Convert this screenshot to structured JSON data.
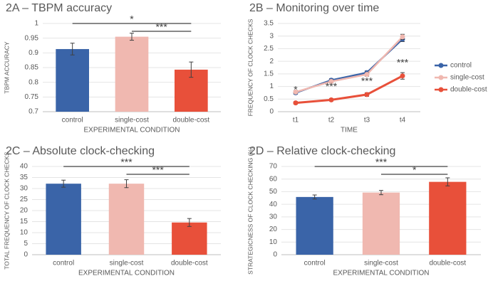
{
  "chart_data": [
    {
      "type": "bar",
      "title": "2A – TBPM accuracy",
      "y_label": "TBPM ACCURACY",
      "x_label": "EXPERIMENTAL CONDITION",
      "categories": [
        "control",
        "single-cost",
        "double-cost"
      ],
      "values": [
        0.913,
        0.955,
        0.843
      ],
      "errors": [
        0.02,
        0.012,
        0.026
      ],
      "colors": [
        "#3a64a8",
        "#f0b8b0",
        "#e8503a"
      ],
      "ylim": [
        0.7,
        1
      ],
      "yticks": [
        0.7,
        0.75,
        0.8,
        0.85,
        0.9,
        0.95,
        1
      ],
      "annotations": [
        {
          "text": "*",
          "pair": [
            "control",
            "double-cost"
          ]
        },
        {
          "text": "***",
          "pair": [
            "single-cost",
            "double-cost"
          ]
        }
      ]
    },
    {
      "type": "line",
      "title": "2B – Monitoring over time",
      "y_label": "FREQUENCY OF CLOCK CHECKS",
      "x_label": "TIME",
      "categories": [
        "t1",
        "t2",
        "t3",
        "t4"
      ],
      "ylim": [
        0,
        3.5
      ],
      "yticks": [
        0,
        0.5,
        1,
        1.5,
        2,
        2.5,
        3,
        3.5
      ],
      "legend": "right",
      "series": [
        {
          "name": "control",
          "color": "#3a64a8",
          "values": [
            0.75,
            1.25,
            1.55,
            2.88
          ],
          "errors": [
            0.06,
            0.06,
            0.07,
            0.1
          ]
        },
        {
          "name": "single-cost",
          "color": "#f0b8b0",
          "values": [
            0.78,
            1.2,
            1.48,
            2.97
          ],
          "errors": [
            0.06,
            0.06,
            0.07,
            0.1
          ]
        },
        {
          "name": "double-cost",
          "color": "#e8503a",
          "values": [
            0.35,
            0.47,
            0.68,
            1.42
          ],
          "errors": [
            0.05,
            0.05,
            0.07,
            0.13
          ]
        }
      ],
      "annotations": [
        {
          "text": "*",
          "at": "t1"
        },
        {
          "text": "***",
          "at": "t2"
        },
        {
          "text": "***",
          "at": "t3"
        },
        {
          "text": "***",
          "at": "t4"
        }
      ]
    },
    {
      "type": "bar",
      "title": "2C – Absolute clock-checking",
      "y_label": "TOTAL FREQUENCY OF CLOCK CHECKS",
      "x_label": "EXPERIMENTAL CONDITION",
      "categories": [
        "control",
        "single-cost",
        "double-cost"
      ],
      "values": [
        32.2,
        32.2,
        14.6
      ],
      "errors": [
        1.6,
        1.8,
        1.8
      ],
      "colors": [
        "#3a64a8",
        "#f0b8b0",
        "#e8503a"
      ],
      "ylim": [
        0,
        40
      ],
      "yticks": [
        0,
        5,
        10,
        15,
        20,
        25,
        30,
        35,
        40
      ],
      "annotations": [
        {
          "text": "***",
          "pair": [
            "control",
            "double-cost"
          ]
        },
        {
          "text": "***",
          "pair": [
            "single-cost",
            "double-cost"
          ]
        }
      ]
    },
    {
      "type": "bar",
      "title": "2D – Relative clock-checking",
      "y_label": "STRATEGICNESS OF CLOCK CHECKING (%)",
      "x_label": "EXPERIMENTAL CONDITION",
      "categories": [
        "control",
        "single-cost",
        "double-cost"
      ],
      "values": [
        45.8,
        49.3,
        57.8
      ],
      "errors": [
        1.6,
        1.7,
        3.2
      ],
      "colors": [
        "#3a64a8",
        "#f0b8b0",
        "#e8503a"
      ],
      "ylim": [
        0,
        70
      ],
      "yticks": [
        0,
        10,
        20,
        30,
        40,
        50,
        60,
        70
      ],
      "annotations": [
        {
          "text": "***",
          "pair": [
            "control",
            "double-cost"
          ]
        },
        {
          "text": "*",
          "pair": [
            "single-cost",
            "double-cost"
          ]
        }
      ]
    }
  ]
}
